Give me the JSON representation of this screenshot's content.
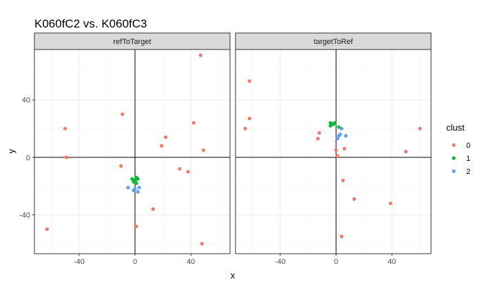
{
  "chart_data": {
    "type": "scatter",
    "title": "K060fC2 vs. K060fC3",
    "xlabel": "x",
    "ylabel": "y",
    "xlim": [
      -72,
      68
    ],
    "ylim": [
      -67,
      75
    ],
    "xticks": [
      -40,
      0,
      40
    ],
    "xtick_labels": [
      "-40",
      "0",
      "40"
    ],
    "yticks": [
      -40,
      0,
      40
    ],
    "ytick_labels": [
      "-40",
      "0",
      "40"
    ],
    "grid": true,
    "reference_lines": {
      "x": 0,
      "y": 0
    },
    "legend": {
      "title": "clust",
      "position": "right",
      "entries": [
        {
          "label": "0",
          "color": "#F8766D"
        },
        {
          "label": "1",
          "color": "#00BA38"
        },
        {
          "label": "2",
          "color": "#619CFF"
        }
      ]
    },
    "colors": {
      "0": "#F8766D",
      "1": "#00BA38",
      "2": "#619CFF"
    },
    "panels": [
      {
        "label": "refToTarget",
        "points": [
          {
            "x": 47,
            "y": 71,
            "clust": "0"
          },
          {
            "x": -9,
            "y": 30,
            "clust": "0"
          },
          {
            "x": -50,
            "y": 20,
            "clust": "0"
          },
          {
            "x": 42,
            "y": 24,
            "clust": "0"
          },
          {
            "x": 22,
            "y": 14,
            "clust": "0"
          },
          {
            "x": 19,
            "y": 8,
            "clust": "0"
          },
          {
            "x": 49,
            "y": 5,
            "clust": "0"
          },
          {
            "x": -49,
            "y": 0,
            "clust": "0"
          },
          {
            "x": -10,
            "y": -6,
            "clust": "0"
          },
          {
            "x": 32,
            "y": -8,
            "clust": "0"
          },
          {
            "x": 38,
            "y": -10,
            "clust": "0"
          },
          {
            "x": 13,
            "y": -36,
            "clust": "0"
          },
          {
            "x": 1,
            "y": -48,
            "clust": "0"
          },
          {
            "x": -63,
            "y": -50,
            "clust": "0"
          },
          {
            "x": 48,
            "y": -60,
            "clust": "0"
          },
          {
            "x": -2,
            "y": -15,
            "clust": "1"
          },
          {
            "x": 0,
            "y": -16,
            "clust": "1"
          },
          {
            "x": 2,
            "y": -15,
            "clust": "1"
          },
          {
            "x": -1,
            "y": -17,
            "clust": "1"
          },
          {
            "x": 1,
            "y": -18,
            "clust": "1"
          },
          {
            "x": 1,
            "y": -14,
            "clust": "1"
          },
          {
            "x": -5,
            "y": -21,
            "clust": "2"
          },
          {
            "x": 3,
            "y": -21,
            "clust": "2"
          },
          {
            "x": -1,
            "y": -23,
            "clust": "2"
          },
          {
            "x": 2,
            "y": -24,
            "clust": "2"
          },
          {
            "x": 0,
            "y": -22,
            "clust": "2"
          }
        ]
      },
      {
        "label": "targetToRef",
        "points": [
          {
            "x": -62,
            "y": 53,
            "clust": "0"
          },
          {
            "x": -62,
            "y": 27,
            "clust": "0"
          },
          {
            "x": -65,
            "y": 20,
            "clust": "0"
          },
          {
            "x": -12,
            "y": 17,
            "clust": "0"
          },
          {
            "x": -13,
            "y": 13,
            "clust": "0"
          },
          {
            "x": 60,
            "y": 20,
            "clust": "0"
          },
          {
            "x": 50,
            "y": 4,
            "clust": "0"
          },
          {
            "x": 6,
            "y": 6,
            "clust": "0"
          },
          {
            "x": 0,
            "y": 5,
            "clust": "0"
          },
          {
            "x": 1,
            "y": 1,
            "clust": "0"
          },
          {
            "x": 5,
            "y": -16,
            "clust": "0"
          },
          {
            "x": 13,
            "y": -29,
            "clust": "0"
          },
          {
            "x": 39,
            "y": -32,
            "clust": "0"
          },
          {
            "x": 4,
            "y": -55,
            "clust": "0"
          },
          {
            "x": -4,
            "y": 24,
            "clust": "1"
          },
          {
            "x": -2,
            "y": 23,
            "clust": "1"
          },
          {
            "x": -1,
            "y": 24,
            "clust": "1"
          },
          {
            "x": -4,
            "y": 22,
            "clust": "1"
          },
          {
            "x": 2,
            "y": 21,
            "clust": "1"
          },
          {
            "x": 4,
            "y": 20,
            "clust": "2"
          },
          {
            "x": 7,
            "y": 15,
            "clust": "2"
          },
          {
            "x": 3,
            "y": 16,
            "clust": "2"
          },
          {
            "x": 2,
            "y": 15,
            "clust": "2"
          },
          {
            "x": 1,
            "y": 13,
            "clust": "2"
          }
        ]
      }
    ]
  }
}
